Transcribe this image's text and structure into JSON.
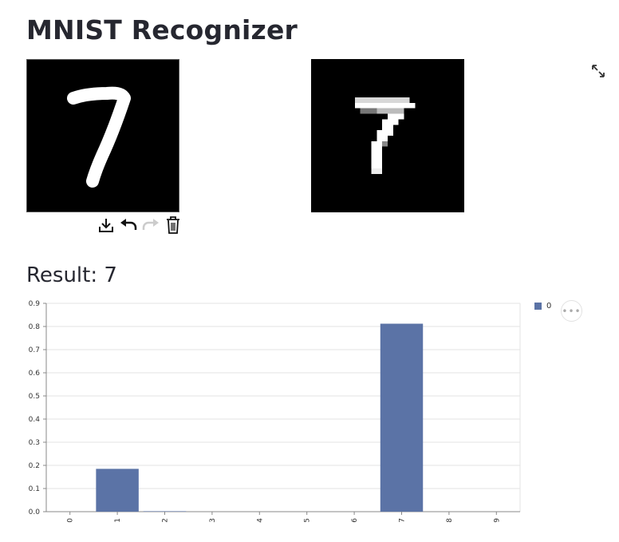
{
  "page": {
    "title": "MNIST Recognizer"
  },
  "toolbar": {
    "icons": [
      "download-icon",
      "undo-icon",
      "redo-icon",
      "trash-icon"
    ]
  },
  "result": {
    "label": "Result: 7"
  },
  "legend": {
    "label": "0",
    "color": "#5b73a6"
  },
  "chart_data": {
    "type": "bar",
    "categories": [
      "0",
      "1",
      "2",
      "3",
      "4",
      "5",
      "6",
      "7",
      "8",
      "9"
    ],
    "series": [
      {
        "name": "0",
        "values": [
          0.0,
          0.185,
          0.002,
          0.0,
          0.0,
          0.0,
          0.0,
          0.812,
          0.0,
          0.0
        ]
      }
    ],
    "ylim": [
      0,
      0.9
    ],
    "yticks": [
      "0.0",
      "0.1",
      "0.2",
      "0.3",
      "0.4",
      "0.5",
      "0.6",
      "0.7",
      "0.8",
      "0.9"
    ],
    "grid": true,
    "legend_position": "top-right",
    "bar_color": "#5b73a6"
  }
}
